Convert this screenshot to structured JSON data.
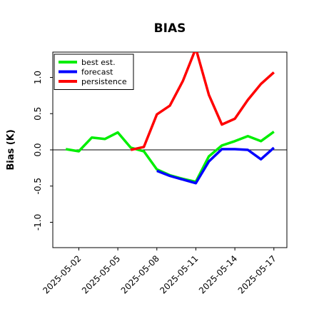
{
  "chart_data": {
    "type": "line",
    "title": "BIAS",
    "xlabel": "",
    "ylabel": "Bias (K)",
    "ylim": [
      -1.35,
      1.35
    ],
    "yticks": [
      -1.0,
      -0.5,
      0.0,
      0.5,
      1.0
    ],
    "ytick_labels": [
      "-1.0",
      "-0.5",
      "0.0",
      "0.5",
      "1.0"
    ],
    "xlim": [
      "2025-04-30",
      "2025-05-18"
    ],
    "xtick_dates": [
      "2025-05-02",
      "2025-05-05",
      "2025-05-08",
      "2025-05-11",
      "2025-05-14",
      "2025-05-17"
    ],
    "xtick_labels": [
      "2025-05-02",
      "2025-05-05",
      "2025-05-08",
      "2025-05-11",
      "2025-05-14",
      "2025-05-17"
    ],
    "highlighted_tick": "2025-05-08",
    "highlight_color": "#228B22",
    "zero_line": true,
    "legend_position": "top-left",
    "series": [
      {
        "name": "best est.",
        "color": "#00ee00",
        "x": [
          "2025-05-01",
          "2025-05-02",
          "2025-05-03",
          "2025-05-04",
          "2025-05-05",
          "2025-05-06",
          "2025-05-07",
          "2025-05-08",
          "2025-05-09",
          "2025-05-10",
          "2025-05-11",
          "2025-05-12",
          "2025-05-13",
          "2025-05-14",
          "2025-05-15",
          "2025-05-16",
          "2025-05-17"
        ],
        "values": [
          0.01,
          -0.02,
          0.17,
          0.15,
          0.24,
          0.03,
          -0.02,
          -0.27,
          -0.35,
          -0.4,
          -0.44,
          -0.09,
          0.06,
          0.12,
          0.19,
          0.12,
          0.25
        ]
      },
      {
        "name": "forecast",
        "color": "#0000ff",
        "x": [
          "2025-05-08",
          "2025-05-09",
          "2025-05-10",
          "2025-05-11",
          "2025-05-12",
          "2025-05-13",
          "2025-05-14",
          "2025-05-15",
          "2025-05-16",
          "2025-05-17"
        ],
        "values": [
          -0.29,
          -0.36,
          -0.41,
          -0.46,
          -0.16,
          0.01,
          0.01,
          0.0,
          -0.13,
          0.03
        ]
      },
      {
        "name": "persistence",
        "color": "#ff0000",
        "x": [
          "2025-05-06",
          "2025-05-07",
          "2025-05-08",
          "2025-05-09",
          "2025-05-10",
          "2025-05-11",
          "2025-05-12",
          "2025-05-13",
          "2025-05-14",
          "2025-05-15",
          "2025-05-16",
          "2025-05-17"
        ],
        "values": [
          0.0,
          0.04,
          0.49,
          0.61,
          0.95,
          1.4,
          0.76,
          0.35,
          0.43,
          0.69,
          0.91,
          1.07
        ]
      }
    ]
  }
}
